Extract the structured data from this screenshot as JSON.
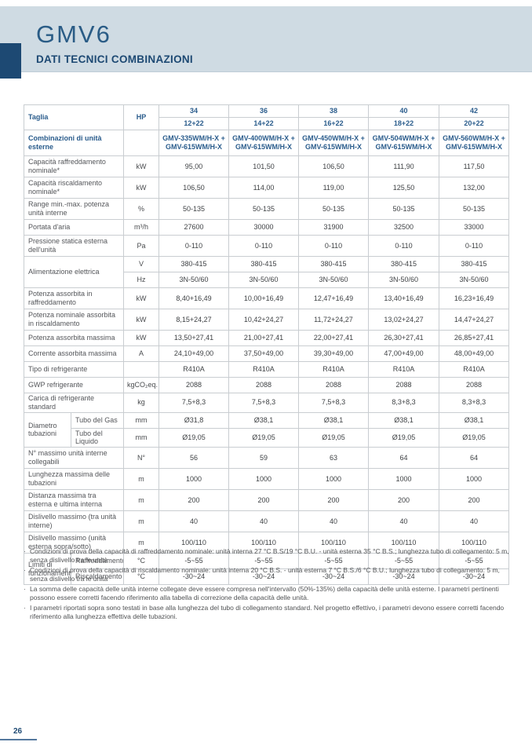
{
  "header": {
    "product_name": "GMV6",
    "section_title": "DATI TECNICI COMBINAZIONI"
  },
  "colors": {
    "banner_bg": "#cfdbe3",
    "navy": "#1d4973",
    "table_blue": "#2a5c8c",
    "border": "#c9cdd1"
  },
  "table": {
    "corner_label": "Taglia",
    "hp_label": "HP",
    "sizes": [
      "34",
      "36",
      "38",
      "40",
      "42"
    ],
    "taglie": [
      "12+22",
      "14+22",
      "16+22",
      "18+22",
      "20+22"
    ],
    "rows": [
      {
        "label": "Combinazioni di unità esterne",
        "blue": true,
        "valBlue": true,
        "unit": "",
        "h": "ht",
        "values": [
          "GMV-335WM/H-X + GMV-615WM/H-X",
          "GMV-400WM/H-X + GMV-615WM/H-X",
          "GMV-450WM/H-X + GMV-615WM/H-X",
          "GMV-504WM/H-X + GMV-615WM/H-X",
          "GMV-560WM/H-X + GMV-615WM/H-X"
        ]
      },
      {
        "label": "Capacità raffreddamento nominale*",
        "unit": "kW",
        "h": "hd",
        "values": [
          "95,00",
          "101,50",
          "106,50",
          "111,90",
          "117,50"
        ]
      },
      {
        "label": "Capacità riscaldamento nominale*",
        "unit": "kW",
        "h": "hd",
        "values": [
          "106,50",
          "114,00",
          "119,00",
          "125,50",
          "132,00"
        ]
      },
      {
        "label": "Range min.-max. potenza unità interne",
        "unit": "%",
        "h": "hd",
        "values": [
          "50-135",
          "50-135",
          "50-135",
          "50-135",
          "50-135"
        ]
      },
      {
        "label": "Portata d'aria",
        "unit": "m³/h",
        "h": "hs",
        "values": [
          "27600",
          "30000",
          "31900",
          "32500",
          "33000"
        ]
      },
      {
        "label": "Pressione statica esterna dell'unità",
        "unit": "Pa",
        "h": "hd",
        "values": [
          "0-110",
          "0-110",
          "0-110",
          "0-110",
          "0-110"
        ]
      },
      {
        "label": "Alimentazione elettrica",
        "span": 2,
        "unit": "V",
        "h": "hs",
        "values": [
          "380-415",
          "380-415",
          "380-415",
          "380-415",
          "380-415"
        ]
      },
      {
        "label": null,
        "unit": "Hz",
        "h": "hs",
        "values": [
          "3N-50/60",
          "3N-50/60",
          "3N-50/60",
          "3N-50/60",
          "3N-50/60"
        ]
      },
      {
        "label": "Potenza assorbita in raffreddamento",
        "unit": "kW",
        "h": "hd",
        "values": [
          "8,40+16,49",
          "10,00+16,49",
          "12,47+16,49",
          "13,40+16,49",
          "16,23+16,49"
        ]
      },
      {
        "label": "Potenza nominale assorbita in riscaldamento",
        "unit": "kW",
        "h": "hd",
        "values": [
          "8,15+24,27",
          "10,42+24,27",
          "11,72+24,27",
          "13,02+24,27",
          "14,47+24,27"
        ]
      },
      {
        "label": "Potenza assorbita massima",
        "unit": "kW",
        "h": "hs",
        "values": [
          "13,50+27,41",
          "21,00+27,41",
          "22,00+27,41",
          "26,30+27,41",
          "26,85+27,41"
        ]
      },
      {
        "label": "Corrente assorbita massima",
        "unit": "A",
        "h": "hs",
        "values": [
          "24,10+49,00",
          "37,50+49,00",
          "39,30+49,00",
          "47,00+49,00",
          "48,00+49,00"
        ]
      },
      {
        "label": "Tipo di refrigerante",
        "unit": "",
        "h": "hs",
        "values": [
          "R410A",
          "R410A",
          "R410A",
          "R410A",
          "R410A"
        ]
      },
      {
        "label": "GWP refrigerante",
        "unit": "kgCO₂eq.",
        "h": "hs",
        "values": [
          "2088",
          "2088",
          "2088",
          "2088",
          "2088"
        ]
      },
      {
        "label": "Carica di refrigerante standard",
        "unit": "kg",
        "h": "hs",
        "values": [
          "7,5+8,3",
          "7,5+8,3",
          "7,5+8,3",
          "8,3+8,3",
          "8,3+8,3"
        ]
      },
      {
        "label": "Diametro tubazioni",
        "span": 2,
        "sub": "Tubo del Gas",
        "unit": "mm",
        "h": "hs",
        "values": [
          "Ø31,8",
          "Ø38,1",
          "Ø38,1",
          "Ø38,1",
          "Ø38,1"
        ]
      },
      {
        "label": null,
        "sub": "Tubo del Liquido",
        "unit": "mm",
        "h": "hs",
        "values": [
          "Ø19,05",
          "Ø19,05",
          "Ø19,05",
          "Ø19,05",
          "Ø19,05"
        ]
      },
      {
        "label": "N° massimo unità interne collegabili",
        "unit": "N°",
        "h": "hd",
        "values": [
          "56",
          "59",
          "63",
          "64",
          "64"
        ]
      },
      {
        "label": "Lunghezza massima delle tubazioni",
        "unit": "m",
        "h": "hd",
        "values": [
          "1000",
          "1000",
          "1000",
          "1000",
          "1000"
        ]
      },
      {
        "label": "Distanza massima tra esterna e ultima interna",
        "unit": "m",
        "h": "hd",
        "values": [
          "200",
          "200",
          "200",
          "200",
          "200"
        ]
      },
      {
        "label": "Dislivello massimo (tra unità interne)",
        "unit": "m",
        "h": "hd",
        "values": [
          "40",
          "40",
          "40",
          "40",
          "40"
        ]
      },
      {
        "label": "Dislivello massimo (unità esterna sopra/sotto)",
        "unit": "m",
        "h": "hd",
        "values": [
          "100/110",
          "100/110",
          "100/110",
          "100/110",
          "100/110"
        ]
      },
      {
        "label": "Limiti di funzionamento",
        "span": 2,
        "sub": "Raffreddamento",
        "unit": "°C",
        "h": "hs",
        "values": [
          "-5~55",
          "-5~55",
          "-5~55",
          "-5~55",
          "-5~55"
        ]
      },
      {
        "label": null,
        "sub": "Riscaldamento",
        "unit": "°C",
        "h": "hs",
        "values": [
          "-30~24",
          "-30~24",
          "-30~24",
          "-30~24",
          "-30~24"
        ]
      }
    ]
  },
  "footnotes": [
    "Condizioni di prova della capacità di raffreddamento nominale: unità interna 27 °C B.S/19 °C B.U. - unità esterna 35 °C B.S.; lunghezza tubo di collegamento: 5 m, senza dislivello tra le unità",
    "Condizioni di prova della capacità di riscaldamento nominale: unità interna 20 °C B.S. - unità esterna 7 °C B.S./6 °C B.U.; lunghezza tubo di collegamento: 5 m, senza dislivello tra le unità",
    "La somma delle capacità delle unità interne collegate deve essere compresa nell'intervallo (50%-135%) della capacità delle unità esterne. I parametri pertinenti possono essere corretti facendo riferimento alla tabella di correzione della capacità delle unità.",
    "I parametri riportati sopra sono testati in base alla lunghezza del tubo di collegamento standard. Nel progetto effettivo, i parametri devono essere corretti facendo riferimento alla lunghezza effettiva delle tubazioni."
  ],
  "footer": {
    "page_number": "26"
  }
}
